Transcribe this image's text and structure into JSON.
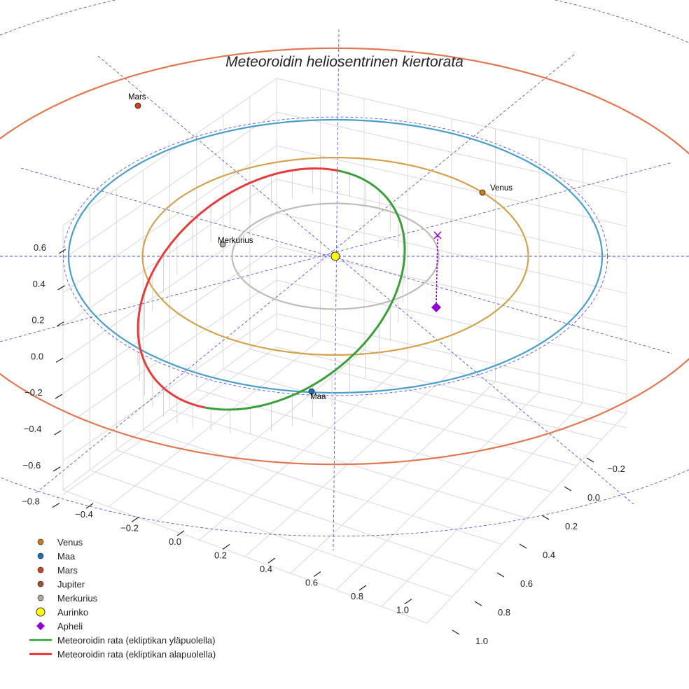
{
  "chart_data": {
    "type": "scatter3d",
    "title": "Meteoroidin heliosentrinen kiertorata",
    "z_ticks": [
      "0.6",
      "0.4",
      "0.2",
      "0.0",
      "−0.2",
      "−0.4",
      "−0.6",
      "−0.8"
    ],
    "x_ticks": [
      "−0.4",
      "−0.2",
      "0.0",
      "0.2",
      "0.4",
      "0.6",
      "0.8",
      "1.0"
    ],
    "y_ticks": [
      "−0.2",
      "0.0",
      "0.2",
      "0.4",
      "0.6",
      "0.8",
      "1.0"
    ],
    "planet_labels": {
      "mars": "Mars",
      "venus": "Venus",
      "mercury": "Merkurius",
      "earth": "Maa"
    },
    "planet_orbit_radii_au": {
      "mercury": 0.387,
      "venus": 0.723,
      "earth": 1.0,
      "mars": 1.524
    },
    "meteoroid_orbit": {
      "perihelion_au": 0.4,
      "aphelion_au": 1.0,
      "segments": [
        "above ecliptic",
        "below ecliptic"
      ]
    },
    "legend": [
      {
        "label": "Venus",
        "symbol": "dot",
        "color": "#c97d16"
      },
      {
        "label": "Maa",
        "symbol": "dot",
        "color": "#1a6fb5"
      },
      {
        "label": "Mars",
        "symbol": "dot",
        "color": "#c8461c"
      },
      {
        "label": "Jupiter",
        "symbol": "dot",
        "color": "#a0522d"
      },
      {
        "label": "Merkurius",
        "symbol": "dot",
        "color": "#b8a898"
      },
      {
        "label": "Aurinko",
        "symbol": "sun",
        "color": "#ffff00"
      },
      {
        "label": "Apheli",
        "symbol": "diamond",
        "color": "#9400d3"
      },
      {
        "label": "Meteoroidin rata (ekliptikan yläpuolella)",
        "symbol": "line",
        "color": "#2ca02c"
      },
      {
        "label": "Meteoroidin rata (ekliptikan alapuolella)",
        "symbol": "line",
        "color": "#e41a1c"
      }
    ],
    "colors": {
      "mercury_orbit": "#c0bbb8",
      "venus_orbit": "#d4a24c",
      "earth_orbit": "#4a9fc8",
      "mars_orbit": "#e07850",
      "above": "#3a9e3a",
      "below": "#e83a3a",
      "grid": "#d9d9d9",
      "dashed": "#5555dd",
      "aphelion": "#9400d3"
    }
  }
}
